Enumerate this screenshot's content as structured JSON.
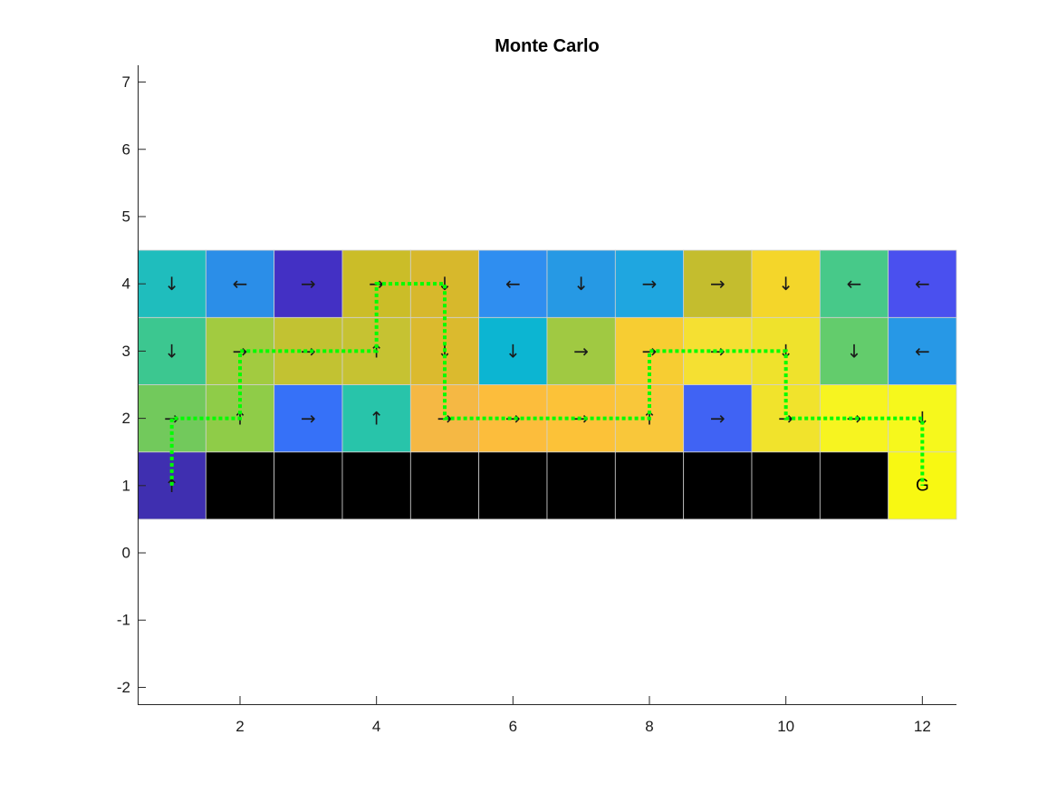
{
  "chart_data": {
    "type": "heatmap",
    "title": "Monte Carlo",
    "xlabel": "",
    "ylabel": "",
    "xlim": [
      0.5,
      12.5
    ],
    "ylim": [
      -2.25,
      7.25
    ],
    "xticks": [
      2,
      4,
      6,
      8,
      10,
      12
    ],
    "yticks": [
      -2,
      -1,
      0,
      1,
      2,
      3,
      4,
      5,
      6,
      7
    ],
    "grid": false,
    "legend": "none",
    "cell_colors_by_row": {
      "4": [
        "#1fbdbd",
        "#2b8ee8",
        "#4330c4",
        "#cbbd28",
        "#d7b82c",
        "#2f8ef0",
        "#2699e4",
        "#1fa6e0",
        "#c4bd2e",
        "#f4d62a",
        "#47c989",
        "#4a50ef"
      ],
      "3": [
        "#3cc790",
        "#a2cb40",
        "#c2c232",
        "#c6c232",
        "#dbba2e",
        "#0cb5d2",
        "#a0c942",
        "#f7cd32",
        "#f5e032",
        "#efe22c",
        "#63cc6c",
        "#2798e6"
      ],
      "2": [
        "#72c95c",
        "#8fcc48",
        "#3671f8",
        "#28c4aa",
        "#f5b844",
        "#fcbd3c",
        "#fcc238",
        "#f9c73a",
        "#4063f4",
        "#f1e32c",
        "#f7f420",
        "#f6f81c"
      ],
      "1": [
        "#3f2fb0",
        "#000000",
        "#000000",
        "#000000",
        "#000000",
        "#000000",
        "#000000",
        "#000000",
        "#000000",
        "#000000",
        "#000000",
        "#f8f812"
      ]
    },
    "policy_arrows_by_row": {
      "4": [
        "↓",
        "←",
        "→",
        "→",
        "↓",
        "←",
        "↓",
        "→",
        "→",
        "↓",
        "←",
        "←"
      ],
      "3": [
        "↓",
        "→",
        "→",
        "↑",
        "↓",
        "↓",
        "→",
        "→",
        "→",
        "↓",
        "↓",
        "←"
      ],
      "2": [
        "→",
        "↑",
        "→",
        "↑",
        "→",
        "→",
        "→",
        "↑",
        "→",
        "→",
        "→",
        "↓"
      ],
      "1": [
        "↑",
        "",
        "",
        "",
        "",
        "",
        "",
        "",
        "",
        "",
        "",
        ""
      ]
    },
    "goal": {
      "x": 12,
      "y": 1,
      "label": "G"
    },
    "path": {
      "color": "#00ff00",
      "style": "dotted",
      "points": [
        [
          1,
          1
        ],
        [
          1,
          2
        ],
        [
          2,
          2
        ],
        [
          2,
          3
        ],
        [
          4,
          3
        ],
        [
          4,
          4
        ],
        [
          5,
          4
        ],
        [
          5,
          2
        ],
        [
          8,
          2
        ],
        [
          8,
          3
        ],
        [
          10,
          3
        ],
        [
          10,
          2
        ],
        [
          12,
          2
        ],
        [
          12,
          1
        ]
      ]
    }
  }
}
